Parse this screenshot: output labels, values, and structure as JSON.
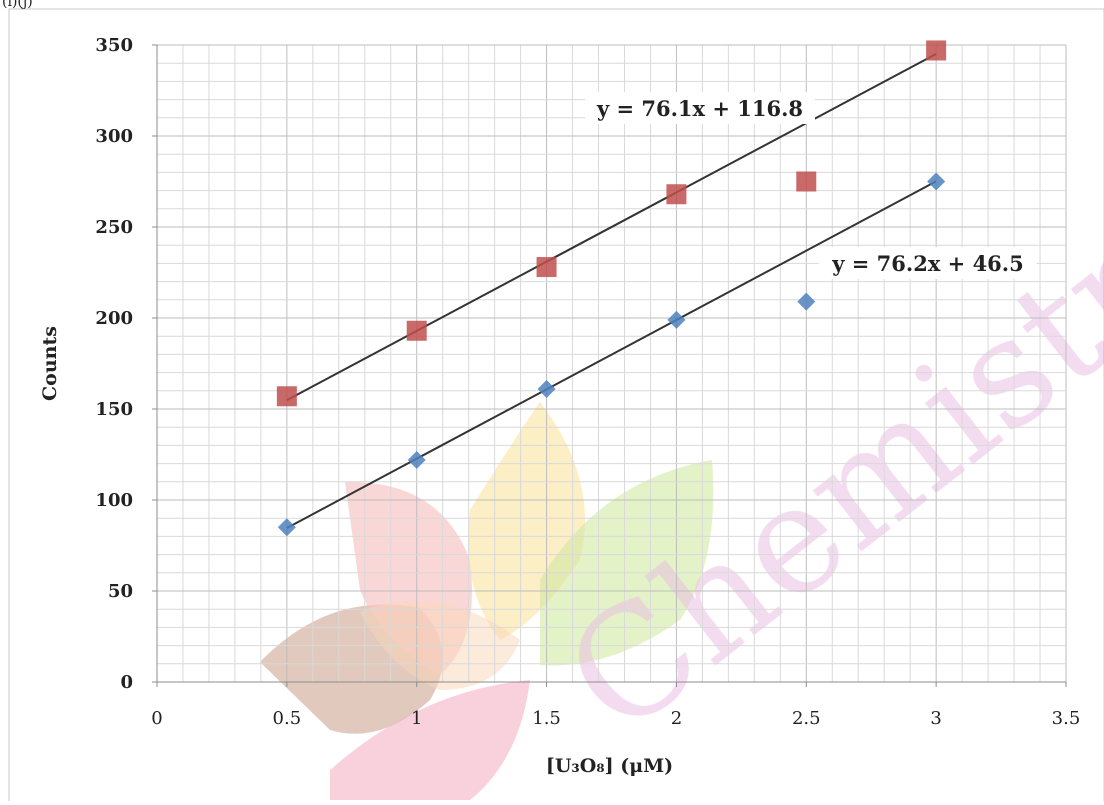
{
  "corner_label": "(i)(j)",
  "watermark": {
    "text": "Chemistry Gu",
    "logo_colors": [
      "#a0522d",
      "#f08080",
      "#f7c948",
      "#9acd32",
      "#e75480",
      "#f4a460"
    ]
  },
  "chart_data": {
    "type": "scatter",
    "title": "",
    "xlabel": "[U₃O₈] (μM)",
    "ylabel": "Counts",
    "xlim": [
      0,
      3.5
    ],
    "ylim": [
      0,
      350
    ],
    "x_ticks": [
      "0",
      "0.5",
      "1",
      "1.5",
      "2",
      "2.5",
      "3",
      "3.5"
    ],
    "y_ticks": [
      "0",
      "50",
      "100",
      "150",
      "200",
      "250",
      "300",
      "350"
    ],
    "grid": true,
    "legend": "none",
    "series": [
      {
        "marker": "square",
        "color": "#c0504d",
        "x": [
          0.5,
          1,
          1.5,
          2,
          2.5,
          3
        ],
        "y": [
          157,
          193,
          228,
          268,
          275,
          347
        ],
        "trendline": {
          "slope": 76.1,
          "intercept": 116.8,
          "equation": "y = 76.1x + 116.8"
        }
      },
      {
        "marker": "diamond",
        "color": "#4f81bd",
        "x": [
          0.5,
          1,
          1.5,
          2,
          2.5,
          3
        ],
        "y": [
          85,
          122,
          161,
          199,
          209,
          275
        ],
        "trendline": {
          "slope": 76.2,
          "intercept": 46.5,
          "equation": "y = 76.2x + 46.5"
        }
      }
    ]
  }
}
